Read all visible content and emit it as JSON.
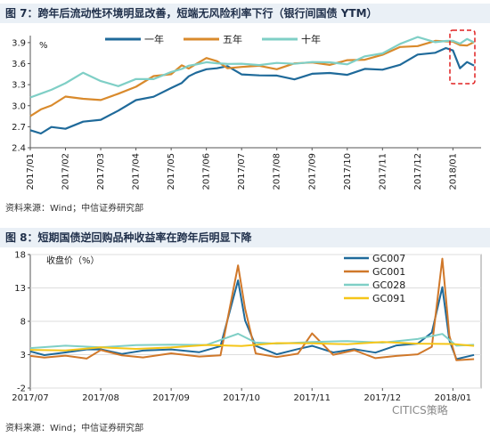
{
  "fig7": {
    "header": "图 7：跨年后流动性环境明显改善，短端无风险利率下行（银行间国债 YTM）",
    "source": "资料来源：Wind；中信证券研究部",
    "chart_data": {
      "type": "line",
      "title": "跨年后流动性环境明显改善，短端无风险利率下行（银行间国债 YTM）",
      "unit": "%",
      "ylim": [
        2.4,
        4.0
      ],
      "yticks": [
        "2.4",
        "2.7",
        "3.0",
        "3.3",
        "3.6",
        "3.9"
      ],
      "categories": [
        "2017/01",
        "2017/02",
        "2017/03",
        "2017/04",
        "2017/05",
        "2017/06",
        "2017/07",
        "2017/08",
        "2017/09",
        "2017/10",
        "2017/11",
        "2017/12",
        "2018/01"
      ],
      "series": [
        {
          "name": "一年",
          "color": "#1f6a9a",
          "x": [
            0,
            0.3,
            0.6,
            1,
            1.5,
            2,
            2.5,
            3,
            3.5,
            4,
            4.3,
            4.5,
            4.7,
            5,
            5.3,
            5.6,
            6,
            6.5,
            7,
            7.5,
            8,
            8.5,
            9,
            9.5,
            10,
            10.5,
            11,
            11.5,
            11.8,
            12,
            12.2,
            12.4,
            12.6
          ],
          "y": [
            2.65,
            2.63,
            2.72,
            2.7,
            2.75,
            2.8,
            2.95,
            3.05,
            3.15,
            3.25,
            3.35,
            3.4,
            3.48,
            3.55,
            3.55,
            3.55,
            3.45,
            3.45,
            3.4,
            3.4,
            3.45,
            3.45,
            3.47,
            3.5,
            3.52,
            3.6,
            3.7,
            3.78,
            3.82,
            3.78,
            3.55,
            3.6,
            3.6
          ]
        },
        {
          "name": "五年",
          "color": "#d98a2c",
          "x": [
            0,
            0.3,
            0.6,
            1,
            1.5,
            2,
            2.5,
            3,
            3.5,
            4,
            4.3,
            4.5,
            4.7,
            5,
            5.3,
            5.6,
            6,
            6.5,
            7,
            7.5,
            8,
            8.5,
            9,
            9.5,
            10,
            10.5,
            11,
            11.5,
            11.8,
            12,
            12.2,
            12.4,
            12.6
          ],
          "y": [
            2.85,
            2.92,
            2.98,
            3.1,
            3.12,
            3.08,
            3.15,
            3.3,
            3.4,
            3.45,
            3.55,
            3.55,
            3.58,
            3.65,
            3.62,
            3.55,
            3.55,
            3.55,
            3.55,
            3.58,
            3.62,
            3.6,
            3.62,
            3.68,
            3.72,
            3.82,
            3.88,
            3.9,
            3.92,
            3.92,
            3.85,
            3.88,
            3.88
          ]
        },
        {
          "name": "十年",
          "color": "#7fcfc6",
          "x": [
            0,
            0.3,
            0.6,
            1,
            1.5,
            2,
            2.5,
            3,
            3.5,
            4,
            4.3,
            4.5,
            4.7,
            5,
            5.3,
            5.6,
            6,
            6.5,
            7,
            7.5,
            8,
            8.5,
            9,
            9.5,
            10,
            10.5,
            11,
            11.5,
            11.8,
            12,
            12.2,
            12.4,
            12.6
          ],
          "y": [
            3.12,
            3.2,
            3.25,
            3.35,
            3.45,
            3.35,
            3.3,
            3.35,
            3.4,
            3.48,
            3.55,
            3.55,
            3.6,
            3.65,
            3.62,
            3.58,
            3.6,
            3.6,
            3.58,
            3.62,
            3.62,
            3.6,
            3.62,
            3.68,
            3.75,
            3.9,
            3.95,
            3.93,
            3.92,
            3.92,
            3.9,
            3.93,
            3.93
          ]
        }
      ]
    }
  },
  "fig8": {
    "header": "图 8：短期国债逆回购品种收益率在跨年后明显下降",
    "source": "资料来源：Wind；中信证券研究部",
    "chart_data": {
      "type": "line",
      "title": "短期国债逆回购品种收益率在跨年后明显下降",
      "ylabel": "收盘价（%）",
      "ylim": [
        -2,
        18
      ],
      "yticks": [
        "-2",
        "3",
        "8",
        "13",
        "18"
      ],
      "categories": [
        "2017/07",
        "2017/08",
        "2017/09",
        "2017/10",
        "2017/11",
        "2017/12",
        "2018/01"
      ],
      "series": [
        {
          "name": "GC007",
          "color": "#1f6a9a",
          "x": [
            0,
            0.2,
            0.5,
            0.8,
            1.0,
            1.3,
            1.6,
            2.0,
            2.4,
            2.7,
            2.95,
            3.05,
            3.2,
            3.5,
            3.8,
            4.0,
            4.3,
            4.6,
            4.9,
            5.2,
            5.5,
            5.7,
            5.85,
            5.95,
            6.05,
            6.3
          ],
          "y": [
            3.5,
            3.0,
            3.2,
            3.6,
            4.0,
            3.2,
            3.5,
            3.8,
            3.5,
            4.2,
            14.0,
            8.0,
            4.5,
            3.2,
            3.8,
            4.3,
            3.5,
            4.0,
            3.3,
            4.2,
            4.5,
            6.5,
            13.0,
            5.0,
            2.5,
            2.8
          ]
        },
        {
          "name": "GC001",
          "color": "#d0782a",
          "x": [
            0,
            0.2,
            0.5,
            0.8,
            1.0,
            1.3,
            1.6,
            2.0,
            2.4,
            2.7,
            2.95,
            3.05,
            3.2,
            3.5,
            3.8,
            4.0,
            4.3,
            4.6,
            4.9,
            5.2,
            5.5,
            5.7,
            5.85,
            5.95,
            6.05,
            6.3
          ],
          "y": [
            2.8,
            2.5,
            3.0,
            2.6,
            3.5,
            2.8,
            2.7,
            3.2,
            2.6,
            3.0,
            16.5,
            10.0,
            3.0,
            2.5,
            3.2,
            6.2,
            2.8,
            3.5,
            2.5,
            3.0,
            3.2,
            4.0,
            17.5,
            6.0,
            2.0,
            2.5
          ]
        },
        {
          "name": "GC028",
          "color": "#7fcfc6",
          "x": [
            0,
            0.5,
            1.0,
            1.5,
            2.0,
            2.5,
            2.95,
            3.2,
            3.5,
            4.0,
            4.5,
            5.0,
            5.5,
            5.85,
            6.05,
            6.3
          ],
          "y": [
            4.0,
            4.2,
            4.3,
            4.3,
            4.5,
            4.6,
            6.0,
            5.0,
            4.8,
            4.9,
            4.9,
            5.0,
            5.2,
            6.0,
            4.5,
            4.3
          ]
        },
        {
          "name": "GC091",
          "color": "#f5c518",
          "x": [
            0,
            0.5,
            1.0,
            1.5,
            2.0,
            2.5,
            3.0,
            3.5,
            4.0,
            4.5,
            5.0,
            5.5,
            6.0,
            6.3
          ],
          "y": [
            3.7,
            3.8,
            3.9,
            4.0,
            4.1,
            4.3,
            4.5,
            4.6,
            4.7,
            4.7,
            4.7,
            4.8,
            4.6,
            4.5
          ]
        }
      ]
    }
  },
  "watermark": "CITICS策略"
}
